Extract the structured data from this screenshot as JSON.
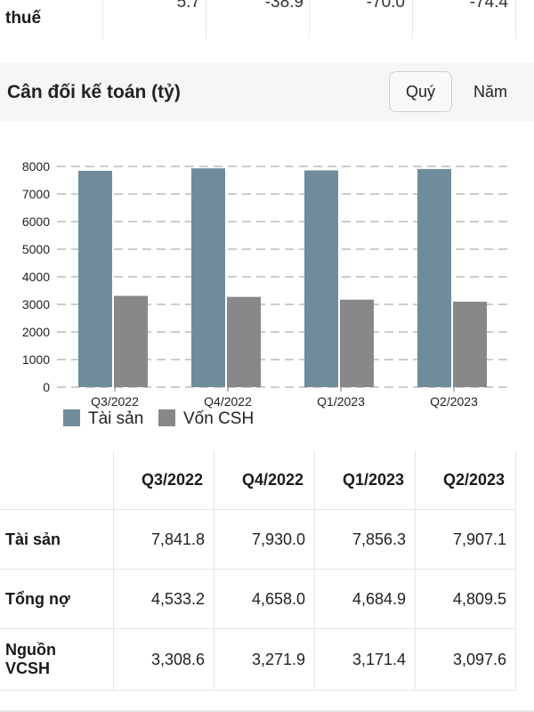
{
  "top_row": {
    "label": "thuế",
    "values": [
      "5.7",
      "-38.9",
      "-70.0",
      "-74.4"
    ]
  },
  "section": {
    "title": "Cân đối kế toán (tỷ)",
    "tab_quarter": "Quý",
    "tab_year": "Năm"
  },
  "chart_data": {
    "type": "bar",
    "categories": [
      "Q3/2022",
      "Q4/2022",
      "Q1/2023",
      "Q2/2023"
    ],
    "series": [
      {
        "name": "Tài sản",
        "values": [
          7841.8,
          7930.0,
          7856.3,
          7907.1
        ],
        "color": "#6f8c9b"
      },
      {
        "name": "Vốn CSH",
        "values": [
          3308.6,
          3271.9,
          3171.4,
          3097.6
        ],
        "color": "#888888"
      }
    ],
    "ylim": [
      0,
      8000
    ],
    "yticks": [
      0,
      1000,
      2000,
      3000,
      4000,
      5000,
      6000,
      7000,
      8000
    ],
    "grid": true,
    "legend_position": "bottom-left"
  },
  "table": {
    "headers": [
      "",
      "Q3/2022",
      "Q4/2022",
      "Q1/2023",
      "Q2/2023"
    ],
    "rows": [
      {
        "label": "Tài sản",
        "values": [
          "7,841.8",
          "7,930.0",
          "7,856.3",
          "7,907.1"
        ]
      },
      {
        "label": "Tổng nợ",
        "values": [
          "4,533.2",
          "4,658.0",
          "4,684.9",
          "4,809.5"
        ]
      },
      {
        "label_line1": "Nguồn",
        "label_line2": "VCSH",
        "values": [
          "3,308.6",
          "3,271.9",
          "3,171.4",
          "3,097.6"
        ]
      }
    ]
  }
}
